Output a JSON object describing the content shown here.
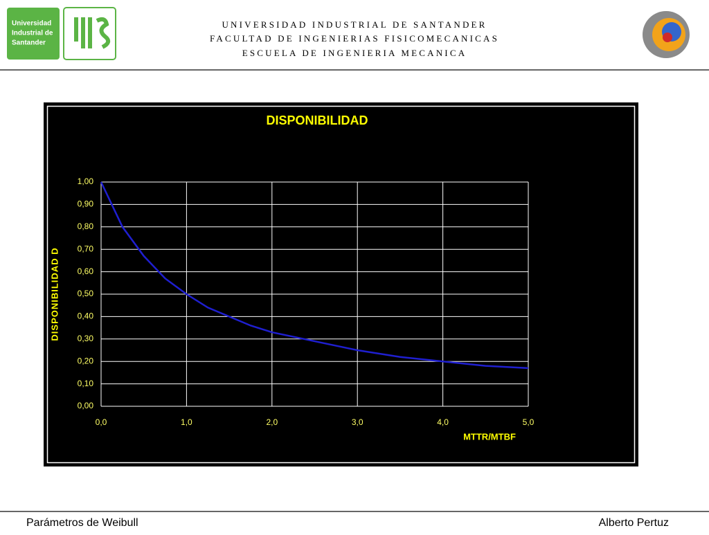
{
  "header": {
    "logo_text": [
      "Universidad",
      "Industrial de",
      "Santander"
    ],
    "lines": [
      "UNIVERSIDAD INDUSTRIAL DE SANTANDER",
      "FACULTAD DE  INGENIERIAS FISICOMECANICAS",
      "ESCUELA DE INGENIERIA MECANICA"
    ]
  },
  "footer": {
    "left": "Parámetros de Weibull",
    "right": "Alberto Pertuz"
  },
  "chart_data": {
    "type": "line",
    "title": "DISPONIBILIDAD",
    "x_label": "MTTR/MTBF",
    "y_label": "DISPONIBILIDAD  D",
    "x": [
      0,
      0.25,
      0.5,
      0.75,
      1,
      1.25,
      1.5,
      1.75,
      2,
      2.5,
      3,
      3.5,
      4,
      4.5,
      5
    ],
    "series": [
      {
        "name": "D",
        "color": "#1f1fd0",
        "values": [
          1.0,
          0.8,
          0.67,
          0.57,
          0.5,
          0.44,
          0.4,
          0.36,
          0.33,
          0.29,
          0.25,
          0.22,
          0.2,
          0.18,
          0.17
        ]
      }
    ],
    "xlim": [
      0,
      5
    ],
    "ylim": [
      0,
      1
    ],
    "xticks": [
      {
        "value": 0,
        "label": "0,0"
      },
      {
        "value": 1,
        "label": "1,0"
      },
      {
        "value": 2,
        "label": "2,0"
      },
      {
        "value": 3,
        "label": "3,0"
      },
      {
        "value": 4,
        "label": "4,0"
      },
      {
        "value": 5,
        "label": "5,0"
      }
    ],
    "yticks": [
      {
        "value": 0,
        "label": "0,00"
      },
      {
        "value": 0.1,
        "label": "0,10"
      },
      {
        "value": 0.2,
        "label": "0,20"
      },
      {
        "value": 0.3,
        "label": "0,30"
      },
      {
        "value": 0.4,
        "label": "0,40"
      },
      {
        "value": 0.5,
        "label": "0,50"
      },
      {
        "value": 0.6,
        "label": "0,60"
      },
      {
        "value": 0.7,
        "label": "0,70"
      },
      {
        "value": 0.8,
        "label": "0,80"
      },
      {
        "value": 0.9,
        "label": "0,90"
      },
      {
        "value": 1,
        "label": "1,00"
      }
    ],
    "grid": true
  }
}
